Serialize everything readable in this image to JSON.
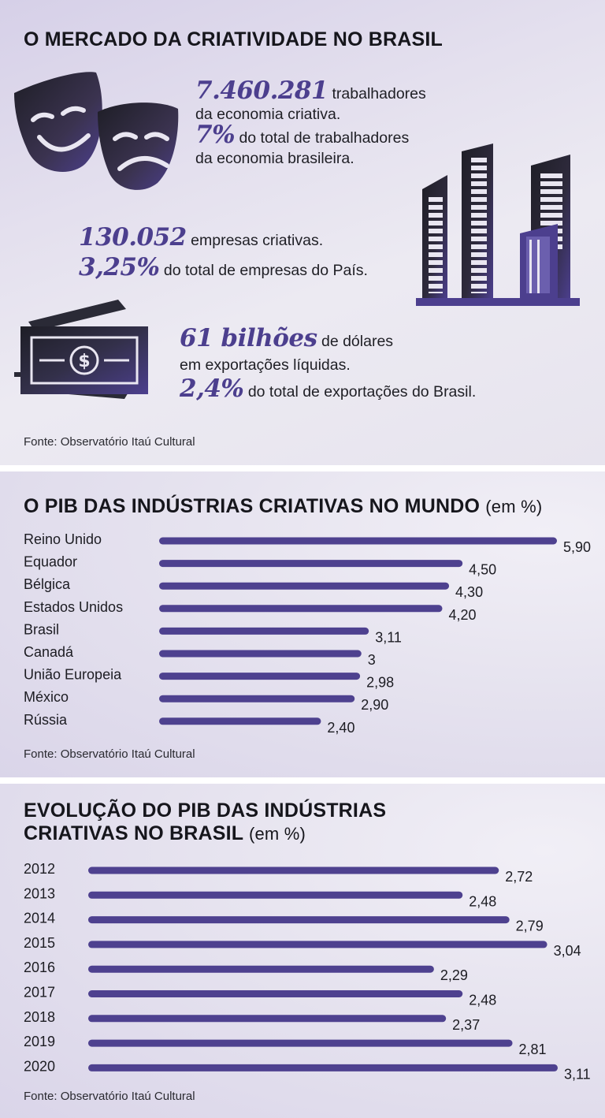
{
  "section1": {
    "title": "O MERCADO DA CRIATIVIDADE NO BRASIL",
    "workers_value": "7.460.281",
    "workers_text_1": "trabalhadores",
    "workers_text_2": "da economia criativa.",
    "workers_pct": "7%",
    "workers_pct_text_1": "do total de trabalhadores",
    "workers_pct_text_2": "da economia brasileira.",
    "companies_value": "130.052",
    "companies_text": "empresas criativas.",
    "companies_pct": "3,25%",
    "companies_pct_text": "do total de empresas do País.",
    "exports_value": "61 bilhões",
    "exports_text_1": "de dólares",
    "exports_text_2": "em exportações líquidas.",
    "exports_pct": "2,4%",
    "exports_pct_text": "do total de exportações do Brasil.",
    "source": "Fonte: Observatório Itaú Cultural",
    "icons": [
      "theater-masks-icon",
      "buildings-icon",
      "money-icon"
    ]
  },
  "section2": {
    "title": "O PIB DAS INDÚSTRIAS CRIATIVAS NO MUNDO",
    "unit": "(em %)",
    "source": "Fonte: Observatório Itaú Cultural"
  },
  "section3": {
    "title_line1": "EVOLUÇÃO DO PIB DAS INDÚSTRIAS",
    "title_line2": "CRIATIVAS NO BRASIL",
    "unit": "(em %)",
    "source": "Fonte: Observatório Itaú Cultural"
  },
  "colors": {
    "accent": "#4c3f8e",
    "bar": "#4e418f",
    "text": "#1c1c22"
  },
  "chart_data": [
    {
      "type": "bar",
      "orientation": "horizontal",
      "title": "O PIB DAS INDÚSTRIAS CRIATIVAS NO MUNDO (em %)",
      "categories": [
        "Reino Unido",
        "Equador",
        "Bélgica",
        "Estados Unidos",
        "Brasil",
        "Canadá",
        "União Europeia",
        "México",
        "Rússia"
      ],
      "values": [
        5.9,
        4.5,
        4.3,
        4.2,
        3.11,
        3,
        2.98,
        2.9,
        2.4
      ],
      "value_labels": [
        "5,90",
        "4,50",
        "4,30",
        "4,20",
        "3,11",
        "3",
        "2,98",
        "2,90",
        "2,40"
      ]
    },
    {
      "type": "bar",
      "orientation": "horizontal",
      "title": "EVOLUÇÃO DO PIB DAS INDÚSTRIAS CRIATIVAS NO BRASIL (em %)",
      "categories": [
        "2012",
        "2013",
        "2014",
        "2015",
        "2016",
        "2017",
        "2018",
        "2019",
        "2020"
      ],
      "values": [
        2.72,
        2.48,
        2.79,
        3.04,
        2.29,
        2.48,
        2.37,
        2.81,
        3.11
      ],
      "value_labels": [
        "2,72",
        "2,48",
        "2,79",
        "3,04",
        "2,29",
        "2,48",
        "2,37",
        "2,81",
        "3,11"
      ]
    }
  ]
}
